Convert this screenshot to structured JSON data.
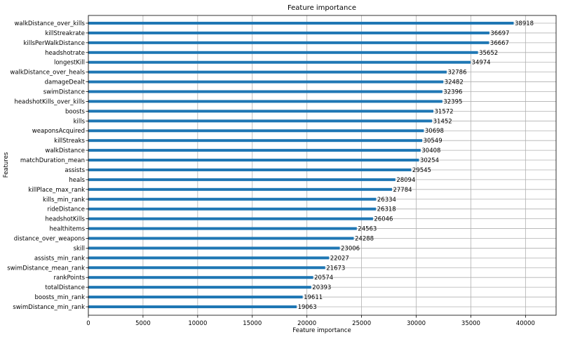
{
  "chart_data": {
    "type": "bar",
    "orientation": "horizontal",
    "title": "Feature importance",
    "xlabel": "Feature importance",
    "ylabel": "Features",
    "xlim": [
      0,
      42800
    ],
    "xticks": [
      0,
      5000,
      10000,
      15000,
      20000,
      25000,
      30000,
      35000,
      40000
    ],
    "xtick_labels": [
      "0",
      "5000",
      "10000",
      "15000",
      "20000",
      "25000",
      "30000",
      "35000",
      "40000"
    ],
    "grid": true,
    "bar_color": "#1f77b4",
    "categories": [
      "walkDistance_over_kills",
      "killStreakrate",
      "killsPerWalkDistance",
      "headshotrate",
      "longestKill",
      "walkDistance_over_heals",
      "damageDealt",
      "swimDistance",
      "headshotKills_over_kills",
      "boosts",
      "kills",
      "weaponsAcquired",
      "killStreaks",
      "walkDistance",
      "matchDuration_mean",
      "assists",
      "heals",
      "killPlace_max_rank",
      "kills_min_rank",
      "rideDistance",
      "headshotKills",
      "healthitems",
      "distance_over_weapons",
      "skill",
      "assists_min_rank",
      "swimDistance_mean_rank",
      "rankPoints",
      "totalDistance",
      "boosts_min_rank",
      "swimDistance_min_rank"
    ],
    "values": [
      38918,
      36697,
      36667,
      35652,
      34974,
      32786,
      32482,
      32396,
      32395,
      31572,
      31452,
      30698,
      30549,
      30408,
      30254,
      29545,
      28094,
      27784,
      26334,
      26318,
      26046,
      24563,
      24288,
      23006,
      22027,
      21673,
      20574,
      20393,
      19611,
      19063
    ],
    "data_labels": [
      "38918",
      "36697",
      "36667",
      "35652",
      "34974",
      "32786",
      "32482",
      "32396",
      "32395",
      "31572",
      "31452",
      "30698",
      "30549",
      "30408",
      "30254",
      "29545",
      "28094",
      "27784",
      "26334",
      "26318",
      "26046",
      "24563",
      "24288",
      "23006",
      "22027",
      "21673",
      "20574",
      "20393",
      "19611",
      "19063"
    ]
  }
}
